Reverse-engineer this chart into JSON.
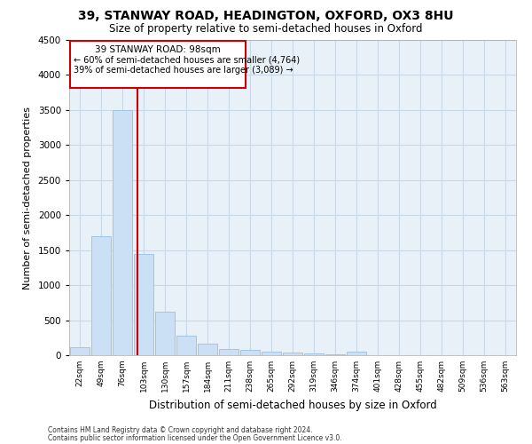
{
  "title_line1": "39, STANWAY ROAD, HEADINGTON, OXFORD, OX3 8HU",
  "title_line2": "Size of property relative to semi-detached houses in Oxford",
  "xlabel": "Distribution of semi-detached houses by size in Oxford",
  "ylabel": "Number of semi-detached properties",
  "footer_line1": "Contains HM Land Registry data © Crown copyright and database right 2024.",
  "footer_line2": "Contains public sector information licensed under the Open Government Licence v3.0.",
  "categories": [
    "22sqm",
    "49sqm",
    "76sqm",
    "103sqm",
    "130sqm",
    "157sqm",
    "184sqm",
    "211sqm",
    "238sqm",
    "265sqm",
    "292sqm",
    "319sqm",
    "346sqm",
    "374sqm",
    "401sqm",
    "428sqm",
    "455sqm",
    "482sqm",
    "509sqm",
    "536sqm",
    "563sqm"
  ],
  "values": [
    120,
    1700,
    3500,
    1450,
    620,
    275,
    160,
    90,
    70,
    50,
    35,
    20,
    10,
    45,
    0,
    0,
    0,
    0,
    0,
    0,
    0
  ],
  "bar_color": "#cce0f5",
  "bar_edge_color": "#9ec8e8",
  "ylim": [
    0,
    4500
  ],
  "yticks": [
    0,
    500,
    1000,
    1500,
    2000,
    2500,
    3000,
    3500,
    4000,
    4500
  ],
  "property_label": "39 STANWAY ROAD: 98sqm",
  "pct_smaller": "60%",
  "pct_smaller_n": "4,764",
  "pct_larger": "39%",
  "pct_larger_n": "3,089",
  "vline_color": "#cc0000",
  "vline_x": 2.72,
  "annotation_box_color": "#cc0000",
  "ax_facecolor": "#e8f0f8",
  "grid_color": "#c8d8e8"
}
